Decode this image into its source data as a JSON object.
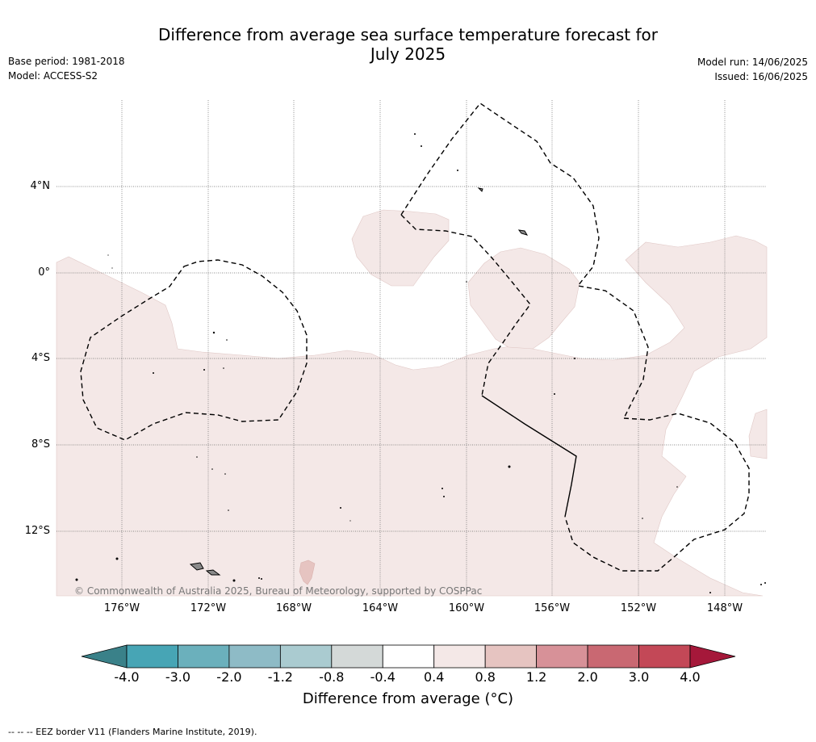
{
  "title_line1": "Difference from average sea surface temperature forecast for",
  "title_line2": "July 2025",
  "base_period": "Base period: 1981-2018",
  "model": "Model: ACCESS-S2",
  "model_run": "Model run: 14/06/2025",
  "issued": "Issued: 16/06/2025",
  "copyright": "© Commonwealth of Australia 2025, Bureau of Meteorology, supported by COSPPac",
  "lat_labels": [
    "4°N",
    "0°",
    "4°S",
    "8°S",
    "12°S"
  ],
  "lon_labels": [
    "176°W",
    "172°W",
    "168°W",
    "164°W",
    "160°W",
    "156°W",
    "152°W",
    "148°W"
  ],
  "colorbar": {
    "ticks": [
      "-4.0",
      "-3.0",
      "-2.0",
      "-1.2",
      "-0.8",
      "-0.4",
      "0.4",
      "0.8",
      "1.2",
      "2.0",
      "3.0",
      "4.0"
    ],
    "colors": [
      "#47a5b5",
      "#6bb0bc",
      "#8ebbc6",
      "#aacbd0",
      "#d4d9d8",
      "#ffffff",
      "#f4e8e7",
      "#e6c4c1",
      "#d79198",
      "#c96872",
      "#c34857"
    ],
    "under_color": "#3a8189",
    "over_color": "#a5183a",
    "label": "Difference from average (°C)"
  },
  "footnote": "--  --  -- EEZ border V11 (Flanders Marine Institute, 2019).",
  "map_colors": {
    "anomaly_fill": "#f4e8e7",
    "anomaly_fill_strong": "#e6c4c1",
    "island_fill": "#8a8a8a"
  }
}
